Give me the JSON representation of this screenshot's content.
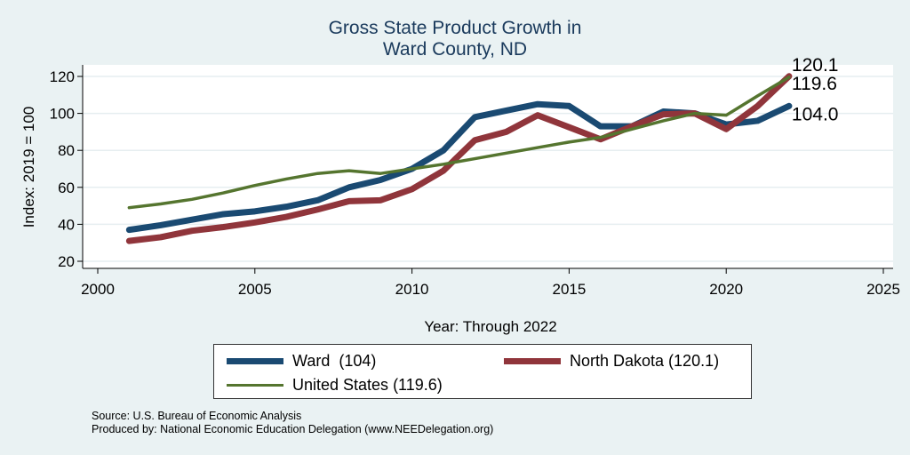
{
  "chart_data": {
    "type": "line",
    "title": [
      "Gross State Product Growth in",
      "Ward County, ND"
    ],
    "xlabel": "Year: Through 2022",
    "ylabel": "Index: 2019 = 100",
    "xlim": [
      1999,
      2026
    ],
    "ylim": [
      14,
      124
    ],
    "xticks": [
      2000,
      2005,
      2010,
      2015,
      2020,
      2025
    ],
    "yticks": [
      20,
      40,
      60,
      80,
      100,
      120
    ],
    "grid": true,
    "x": [
      2001,
      2002,
      2003,
      2004,
      2005,
      2006,
      2007,
      2008,
      2009,
      2010,
      2011,
      2012,
      2013,
      2014,
      2015,
      2016,
      2017,
      2018,
      2019,
      2020,
      2021,
      2022
    ],
    "series": [
      {
        "name": "Ward  (104)",
        "color": "#1a4a72",
        "width": 7,
        "end_label": "104.0",
        "values": [
          37,
          39.5,
          42.5,
          45.5,
          47,
          49.5,
          53,
          60,
          64,
          70,
          80,
          98,
          101.5,
          105,
          104,
          93,
          93,
          101,
          100,
          94,
          96,
          104
        ]
      },
      {
        "name": "North Dakota (120.1)",
        "color": "#90353b",
        "width": 7,
        "end_label": "120.1",
        "values": [
          31,
          33,
          36.5,
          38.5,
          41,
          44,
          48,
          52.5,
          53,
          59,
          69,
          85.5,
          90,
          99,
          92.5,
          86,
          93,
          99.5,
          100,
          91.5,
          104,
          120.1
        ]
      },
      {
        "name": "United States (119.6)",
        "color": "#55752f",
        "width": 3.5,
        "end_label": "119.6",
        "values": [
          49,
          51,
          53.5,
          57,
          61,
          64.5,
          67.5,
          69,
          67.5,
          70,
          72.5,
          75.5,
          78.5,
          81.5,
          84.5,
          87,
          91.5,
          96,
          100,
          99,
          109.5,
          119.6
        ]
      }
    ],
    "legend_placement": "bottom"
  },
  "source": [
    "Source: U.S. Bureau of Economic Analysis",
    "Produced by: National Economic Education Delegation (www.NEEDelegation.org)"
  ]
}
